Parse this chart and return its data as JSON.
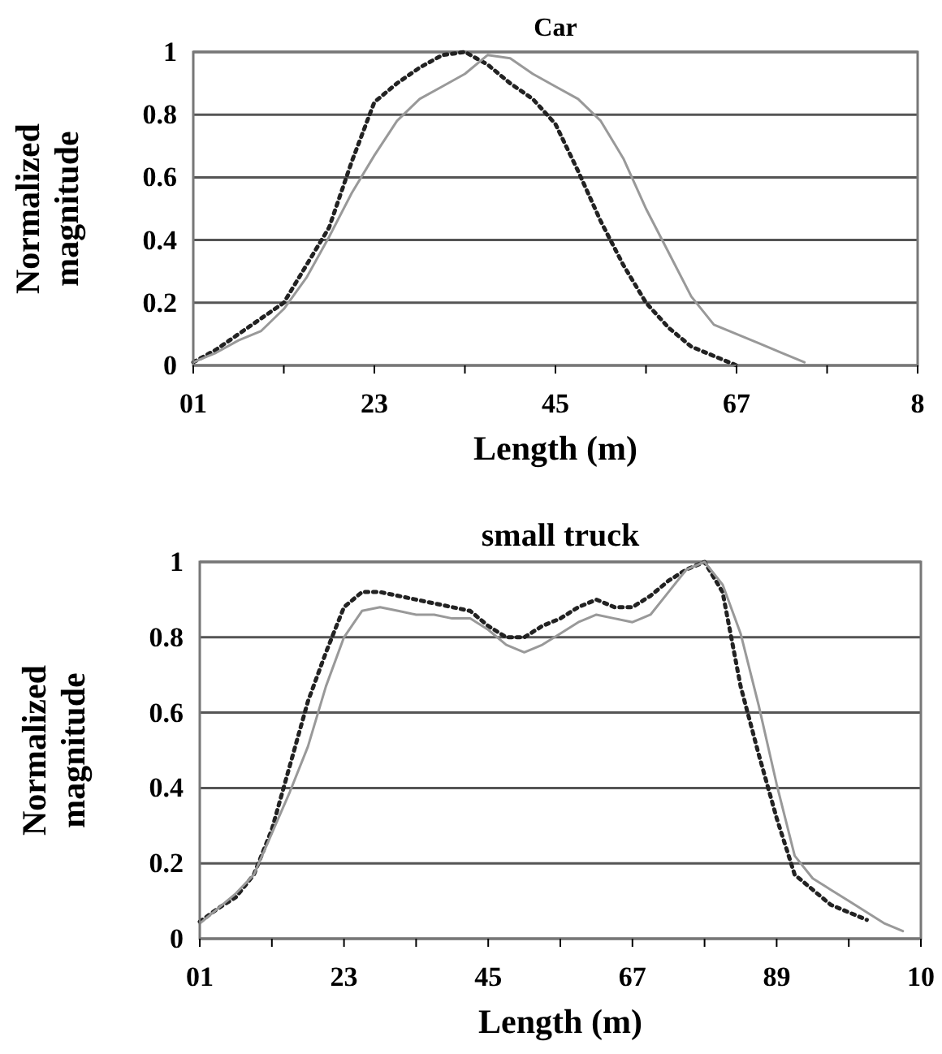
{
  "chart_data": [
    {
      "type": "line",
      "title": "Car",
      "xlabel": "Length (m)",
      "ylabel": "Normalized magnitude",
      "categories": [
        "01",
        null,
        null,
        null,
        null,
        null,
        null,
        null,
        "23",
        null,
        null,
        null,
        null,
        null,
        null,
        null,
        "45",
        null,
        null,
        null,
        null,
        null,
        null,
        null,
        "67",
        null,
        null,
        null,
        null,
        null,
        null,
        null,
        "8"
      ],
      "ylim": [
        0,
        1
      ],
      "yticks": [
        0,
        0.2,
        0.4,
        0.6,
        0.8,
        1
      ],
      "grid": "y",
      "series": [
        {
          "color": "#222222",
          "line_style": "dotted",
          "values": [
            0.01,
            0.05,
            0.1,
            0.15,
            0.2,
            0.32,
            0.44,
            0.65,
            0.84,
            0.9,
            0.95,
            0.99,
            1,
            0.96,
            0.9,
            0.85,
            0.77,
            0.62,
            0.46,
            0.32,
            0.2,
            0.12,
            0.06,
            0.03,
            0,
            null,
            null,
            null,
            null,
            null,
            null,
            null,
            null
          ]
        },
        {
          "color": "#999999",
          "line_style": "solid",
          "values": [
            0.01,
            0.04,
            0.08,
            0.11,
            0.18,
            0.28,
            0.41,
            0.55,
            0.67,
            0.78,
            0.85,
            0.89,
            0.93,
            0.99,
            0.98,
            0.93,
            0.89,
            0.85,
            0.78,
            0.66,
            0.5,
            0.36,
            0.22,
            0.13,
            0.1,
            0.07,
            0.04,
            0.01,
            null,
            null,
            null,
            null,
            null
          ]
        }
      ]
    },
    {
      "type": "line",
      "title": "small truck",
      "xlabel": "Length (m)",
      "ylabel": "Normalized magnitude",
      "categories": [
        "01",
        null,
        null,
        null,
        null,
        null,
        null,
        null,
        "23",
        null,
        null,
        null,
        null,
        null,
        null,
        null,
        "45",
        null,
        null,
        null,
        null,
        null,
        null,
        null,
        "67",
        null,
        null,
        null,
        null,
        null,
        null,
        null,
        "89",
        null,
        null,
        null,
        null,
        null,
        null,
        null,
        "10"
      ],
      "ylim": [
        0,
        1
      ],
      "yticks": [
        0,
        0.2,
        0.4,
        0.6,
        0.8,
        1
      ],
      "grid": "y",
      "series": [
        {
          "color": "#222222",
          "line_style": "dotted",
          "values": [
            0.045,
            0.08,
            0.11,
            0.17,
            0.29,
            0.46,
            0.63,
            0.76,
            0.88,
            0.92,
            0.92,
            0.91,
            0.9,
            0.89,
            0.88,
            0.87,
            0.83,
            0.8,
            0.8,
            0.83,
            0.85,
            0.88,
            0.9,
            0.88,
            0.88,
            0.91,
            0.95,
            0.98,
            1,
            0.92,
            0.67,
            0.49,
            0.32,
            0.17,
            0.13,
            0.09,
            0.07,
            0.05,
            null,
            null,
            null
          ]
        },
        {
          "color": "#999999",
          "line_style": "solid",
          "values": [
            0.04,
            0.08,
            0.12,
            0.17,
            0.28,
            0.39,
            0.51,
            0.67,
            0.8,
            0.87,
            0.88,
            0.87,
            0.86,
            0.86,
            0.85,
            0.85,
            0.82,
            0.78,
            0.76,
            0.78,
            0.81,
            0.84,
            0.86,
            0.85,
            0.84,
            0.86,
            0.92,
            0.98,
            1,
            0.94,
            0.81,
            0.62,
            0.41,
            0.22,
            0.16,
            0.13,
            0.1,
            0.07,
            0.04,
            0.02,
            null
          ]
        }
      ]
    }
  ]
}
